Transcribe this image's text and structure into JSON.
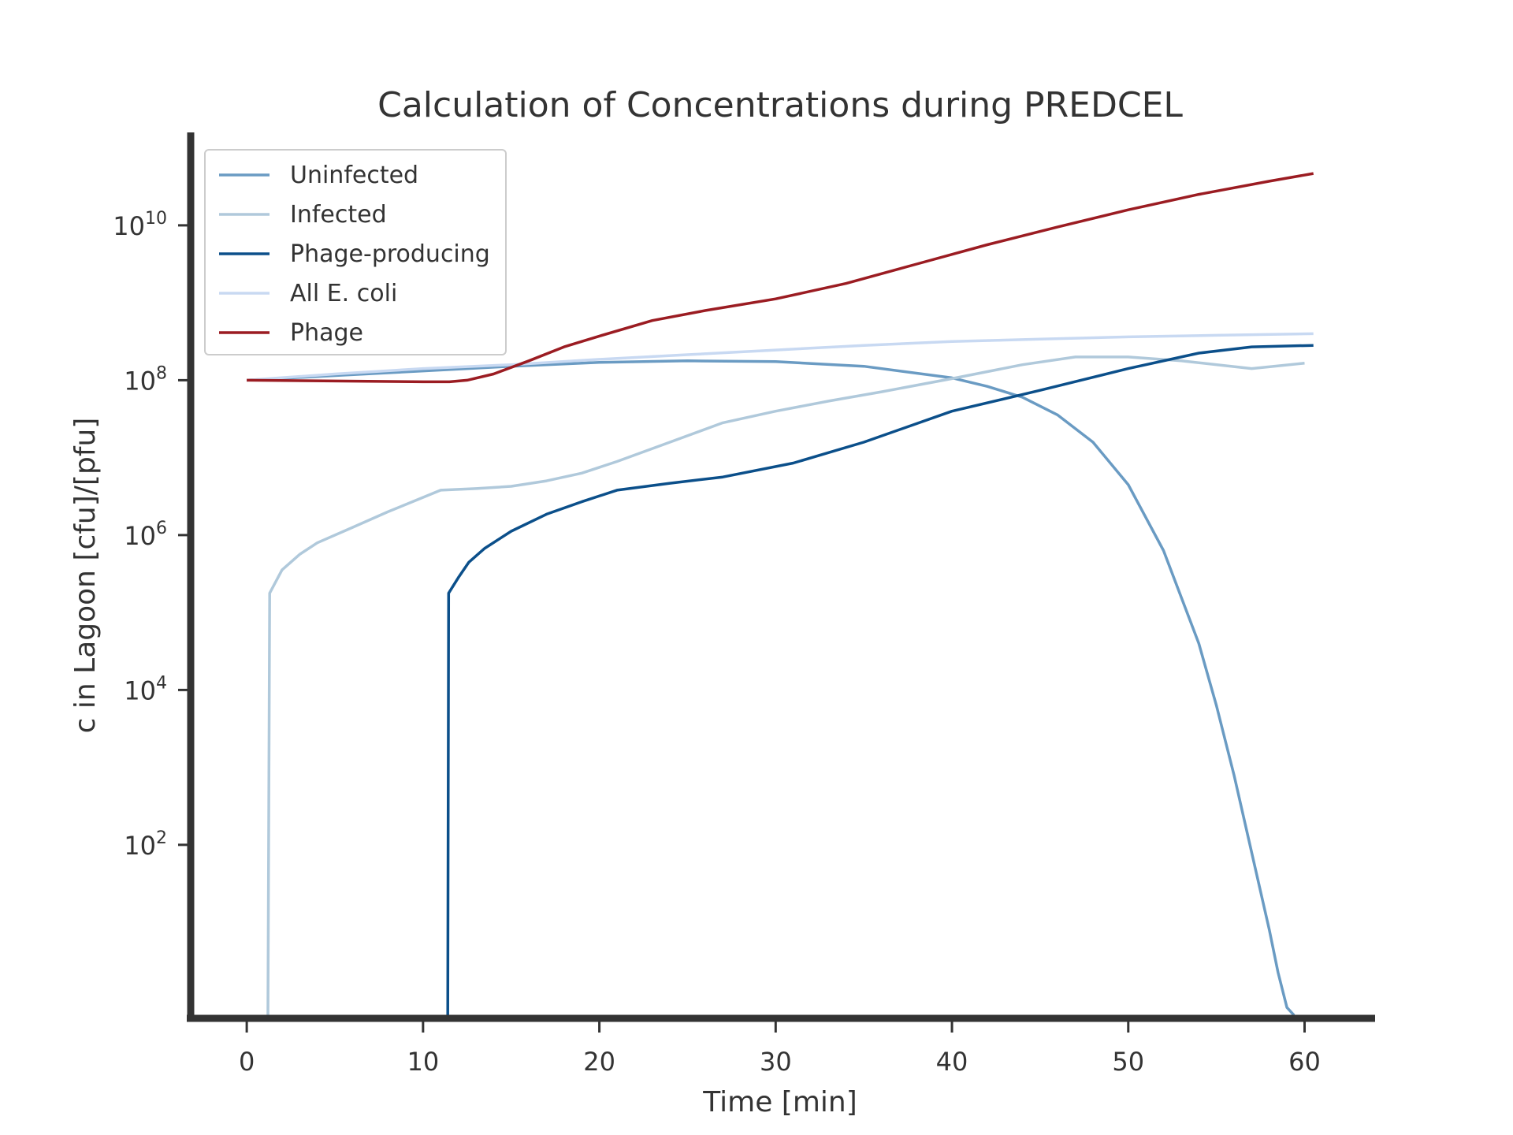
{
  "chart_data": {
    "type": "line",
    "title": "Calculation of Concentrations during PREDCEL",
    "xlabel": "Time [min]",
    "ylabel": "c in Lagoon [cfu]/[pfu]",
    "xlim": [
      -3,
      64
    ],
    "ylim_log10": [
      -0.2,
      11.2
    ],
    "yscale": "log",
    "x_ticks": [
      0,
      10,
      20,
      30,
      40,
      50,
      60
    ],
    "y_ticks": [
      {
        "exp": 2,
        "base": "10",
        "sup": "2"
      },
      {
        "exp": 4,
        "base": "10",
        "sup": "4"
      },
      {
        "exp": 6,
        "base": "10",
        "sup": "6"
      },
      {
        "exp": 8,
        "base": "10",
        "sup": "8"
      },
      {
        "exp": 10,
        "base": "10",
        "sup": "10"
      }
    ],
    "grid": false,
    "legend_position": "top-left",
    "series": [
      {
        "name": "Uninfected",
        "color": "#6a9bc3",
        "x": [
          0,
          5,
          10,
          15,
          20,
          25,
          30,
          35,
          40,
          42,
          44,
          46,
          48,
          50,
          52,
          54,
          55,
          56,
          57,
          58,
          58.5,
          59,
          59.4,
          59.45
        ],
        "log10_y": [
          8.0,
          8.06,
          8.12,
          8.18,
          8.23,
          8.25,
          8.24,
          8.18,
          8.03,
          7.92,
          7.78,
          7.55,
          7.2,
          6.65,
          5.8,
          4.6,
          3.8,
          2.9,
          1.9,
          0.9,
          0.35,
          -0.1,
          -0.2,
          -0.2
        ]
      },
      {
        "name": "Infected",
        "color": "#b0c9db",
        "x": [
          1.2,
          1.3,
          2.0,
          3.0,
          4.0,
          6.0,
          8.0,
          11.0,
          13.0,
          15.0,
          17.0,
          19.0,
          21.0,
          24.0,
          27.0,
          30.0,
          33.0,
          36.0,
          40.0,
          44.0,
          47.0,
          50.0,
          53.0,
          57.0,
          60.0
        ],
        "log10_y": [
          -0.2,
          5.25,
          5.55,
          5.75,
          5.9,
          6.1,
          6.3,
          6.58,
          6.6,
          6.63,
          6.7,
          6.8,
          6.95,
          7.2,
          7.45,
          7.6,
          7.73,
          7.85,
          8.02,
          8.2,
          8.3,
          8.3,
          8.25,
          8.15,
          8.22
        ]
      },
      {
        "name": "Phage-producing",
        "color": "#0b4f8a",
        "x": [
          11.4,
          11.45,
          12.0,
          12.6,
          13.5,
          15.0,
          17.0,
          19.0,
          21.0,
          24.0,
          27.0,
          31.0,
          35.0,
          40.0,
          45.0,
          50.0,
          54.0,
          57.0,
          60.5
        ],
        "log10_y": [
          -0.2,
          5.25,
          5.45,
          5.65,
          5.83,
          6.05,
          6.27,
          6.43,
          6.58,
          6.67,
          6.75,
          6.93,
          7.2,
          7.6,
          7.87,
          8.15,
          8.35,
          8.43,
          8.45
        ]
      },
      {
        "name": "All E. coli",
        "color": "#c8d9f2",
        "x": [
          0,
          5,
          10,
          15,
          20,
          25,
          30,
          35,
          40,
          45,
          50,
          55,
          60.5
        ],
        "log10_y": [
          8.0,
          8.08,
          8.15,
          8.2,
          8.27,
          8.33,
          8.39,
          8.45,
          8.5,
          8.53,
          8.56,
          8.58,
          8.6
        ]
      },
      {
        "name": "Phage",
        "color": "#9b1c22",
        "x": [
          0,
          5,
          10,
          11.5,
          12.5,
          14,
          16,
          18,
          20,
          23,
          26,
          30,
          34,
          38,
          42,
          46,
          50,
          54,
          58,
          60.5
        ],
        "log10_y": [
          8.0,
          7.99,
          7.98,
          7.98,
          8.0,
          8.08,
          8.25,
          8.43,
          8.57,
          8.77,
          8.9,
          9.05,
          9.25,
          9.5,
          9.75,
          9.98,
          10.2,
          10.4,
          10.57,
          10.67
        ]
      }
    ]
  }
}
